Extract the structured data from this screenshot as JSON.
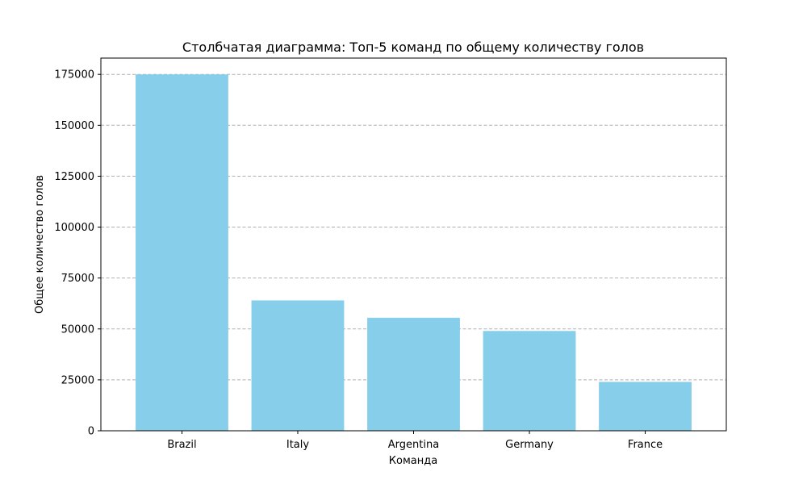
{
  "chart_data": {
    "type": "bar",
    "title": "Столбчатая диаграмма: Топ-5 команд по общему количеству голов",
    "xlabel": "Команда",
    "ylabel": "Общее количество голов",
    "categories": [
      "Brazil",
      "Italy",
      "Argentina",
      "Germany",
      "France"
    ],
    "values": [
      175000,
      64000,
      55500,
      49000,
      24000
    ],
    "ylim": [
      0,
      183000
    ],
    "yticks": [
      0,
      25000,
      50000,
      75000,
      100000,
      125000,
      150000,
      175000
    ],
    "grid": "y",
    "bar_color": "#87CEEB"
  }
}
